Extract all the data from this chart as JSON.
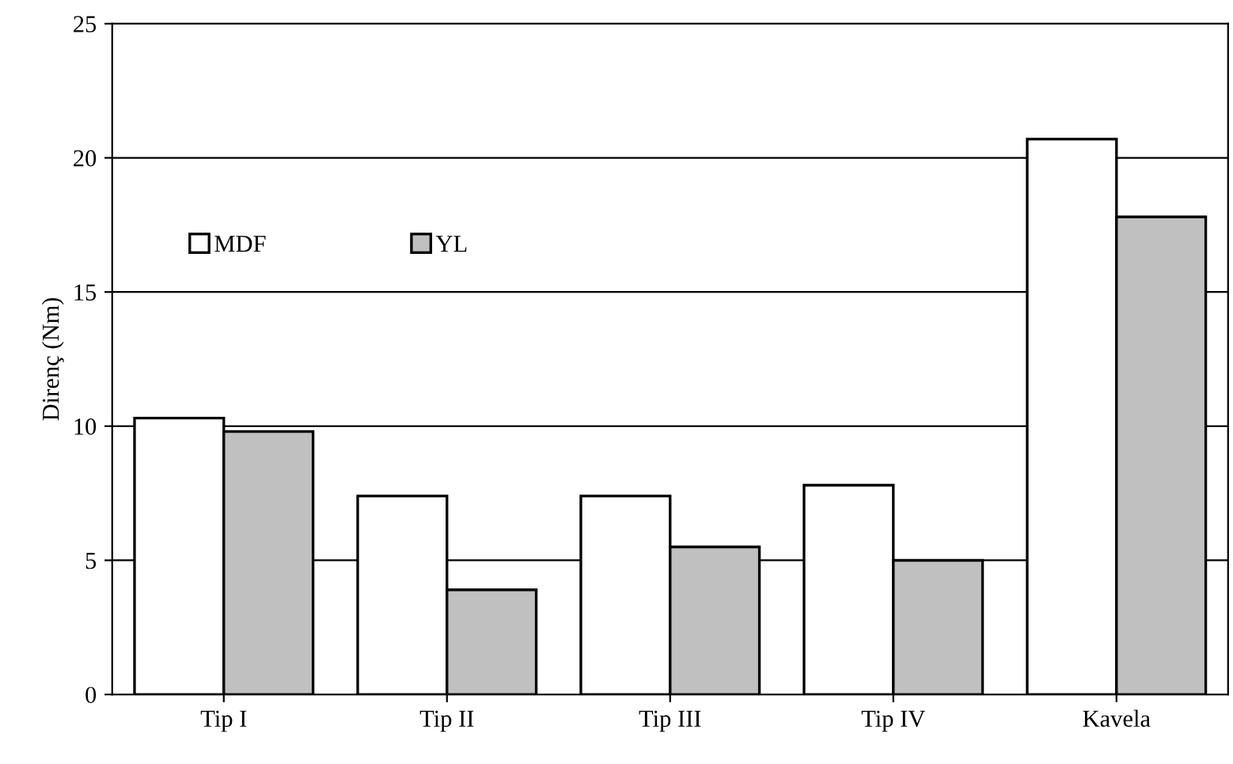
{
  "chart_data": {
    "type": "bar",
    "ylabel": "Direnç (Nm)",
    "categories": [
      "Tip I",
      "Tip II",
      "Tip III",
      "Tip IV",
      "Kavela"
    ],
    "series": [
      {
        "name": "MDF",
        "color": "#ffffff",
        "values": [
          10.3,
          7.4,
          7.4,
          7.8,
          20.7
        ]
      },
      {
        "name": "YL",
        "color": "#c0c0c0",
        "values": [
          9.8,
          3.9,
          5.5,
          5.0,
          17.8
        ]
      }
    ],
    "ylim": [
      0,
      25
    ],
    "yticks": [
      0,
      5,
      10,
      15,
      20,
      25
    ],
    "grid": "y",
    "legend": "top left"
  }
}
